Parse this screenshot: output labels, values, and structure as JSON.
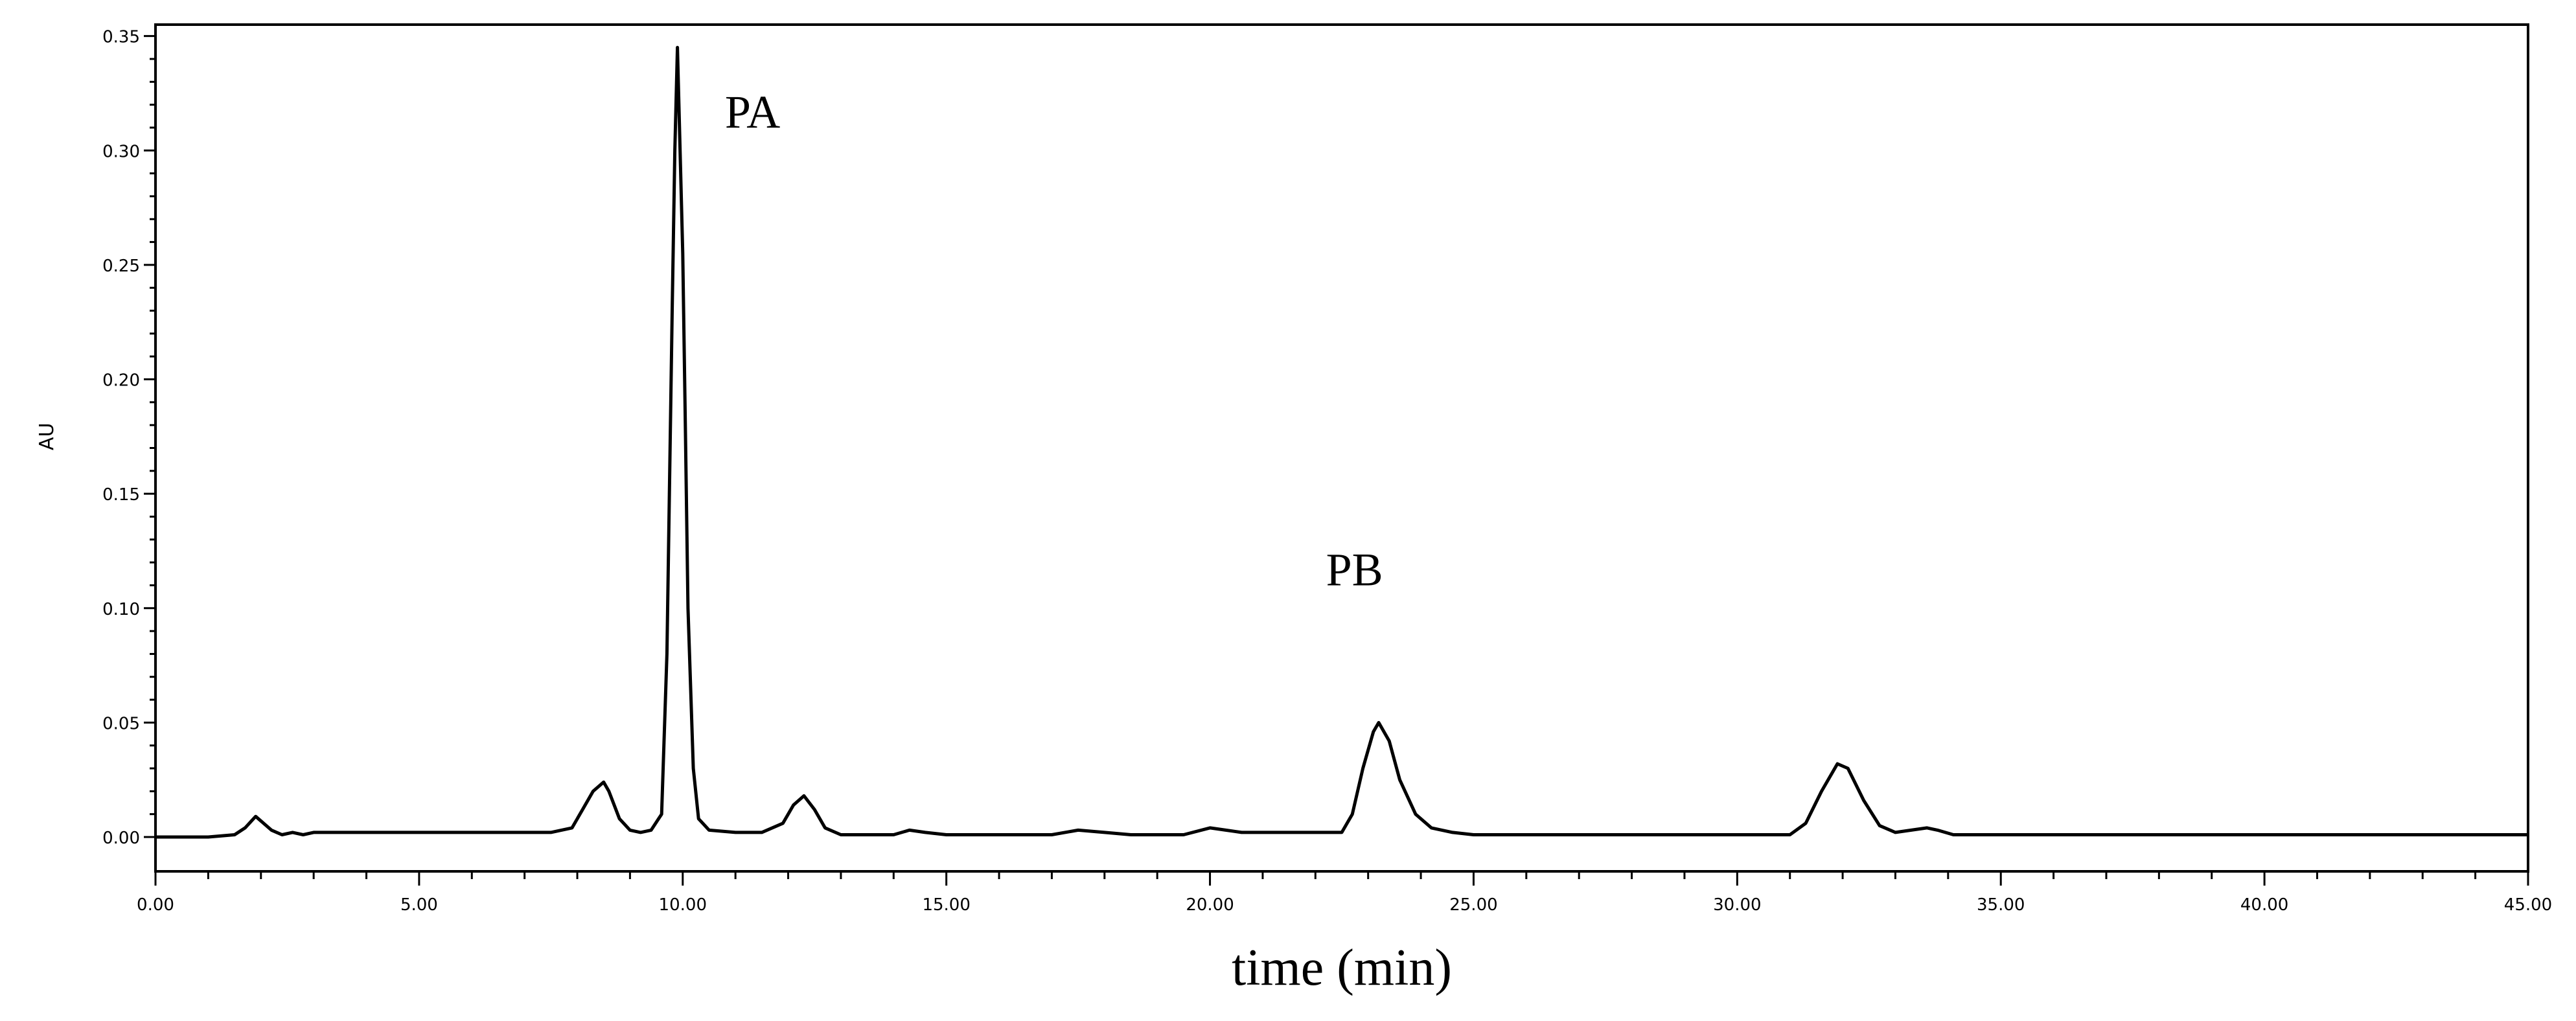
{
  "chart_data": {
    "type": "line",
    "title": "",
    "xlabel": "time (min)",
    "ylabel": "AU",
    "xlim": [
      0,
      45
    ],
    "ylim": [
      -0.015,
      0.355
    ],
    "x_ticks": [
      0,
      5,
      10,
      15,
      20,
      25,
      30,
      35,
      40,
      45
    ],
    "x_tick_labels": [
      "0.00",
      "5.00",
      "10.00",
      "15.00",
      "20.00",
      "25.00",
      "30.00",
      "35.00",
      "40.00",
      "45.00"
    ],
    "y_ticks": [
      0,
      0.05,
      0.1,
      0.15,
      0.2,
      0.25,
      0.3,
      0.35
    ],
    "y_tick_labels": [
      "0.00",
      "0.05",
      "0.10",
      "0.15",
      "0.20",
      "0.25",
      "0.30",
      "0.35"
    ],
    "grid": false,
    "annotations": [
      {
        "text": "PA",
        "x": 10.8,
        "y": 0.31
      },
      {
        "text": "PB",
        "x": 22.2,
        "y": 0.11
      }
    ],
    "series": [
      {
        "x": [
          0,
          1.0,
          1.5,
          1.7,
          1.9,
          2.0,
          2.2,
          2.4,
          2.6,
          2.8,
          3.0,
          5.0,
          7.5,
          7.9,
          8.1,
          8.3,
          8.5,
          8.6,
          8.8,
          9.0,
          9.2,
          9.4,
          9.6,
          9.7,
          9.8,
          9.85,
          9.9,
          9.95,
          10.0,
          10.05,
          10.1,
          10.2,
          10.3,
          10.5,
          11.0,
          11.5,
          11.9,
          12.1,
          12.3,
          12.5,
          12.7,
          13.0,
          14.0,
          14.3,
          14.6,
          15.0,
          17.0,
          17.5,
          18.0,
          18.5,
          19.5,
          20.0,
          20.3,
          20.6,
          21.0,
          22.0,
          22.5,
          22.7,
          22.9,
          23.1,
          23.2,
          23.4,
          23.6,
          23.9,
          24.2,
          24.6,
          25.0,
          30.0,
          31.0,
          31.3,
          31.6,
          31.9,
          32.1,
          32.4,
          32.7,
          33.0,
          33.3,
          33.6,
          33.8,
          34.1,
          34.5,
          40.0,
          45.0
        ],
        "y": [
          0,
          0,
          0.001,
          0.004,
          0.009,
          0.007,
          0.003,
          0.001,
          0.002,
          0.001,
          0.002,
          0.002,
          0.002,
          0.004,
          0.012,
          0.02,
          0.024,
          0.02,
          0.008,
          0.003,
          0.002,
          0.003,
          0.01,
          0.08,
          0.23,
          0.3,
          0.345,
          0.3,
          0.255,
          0.18,
          0.1,
          0.03,
          0.008,
          0.003,
          0.002,
          0.002,
          0.006,
          0.014,
          0.018,
          0.012,
          0.004,
          0.001,
          0.001,
          0.003,
          0.002,
          0.001,
          0.001,
          0.003,
          0.002,
          0.001,
          0.001,
          0.004,
          0.003,
          0.002,
          0.002,
          0.002,
          0.002,
          0.01,
          0.03,
          0.046,
          0.05,
          0.042,
          0.025,
          0.01,
          0.004,
          0.002,
          0.001,
          0.001,
          0.001,
          0.006,
          0.02,
          0.032,
          0.03,
          0.016,
          0.005,
          0.002,
          0.003,
          0.004,
          0.003,
          0.001,
          0.001,
          0.001,
          0.001
        ]
      }
    ]
  }
}
